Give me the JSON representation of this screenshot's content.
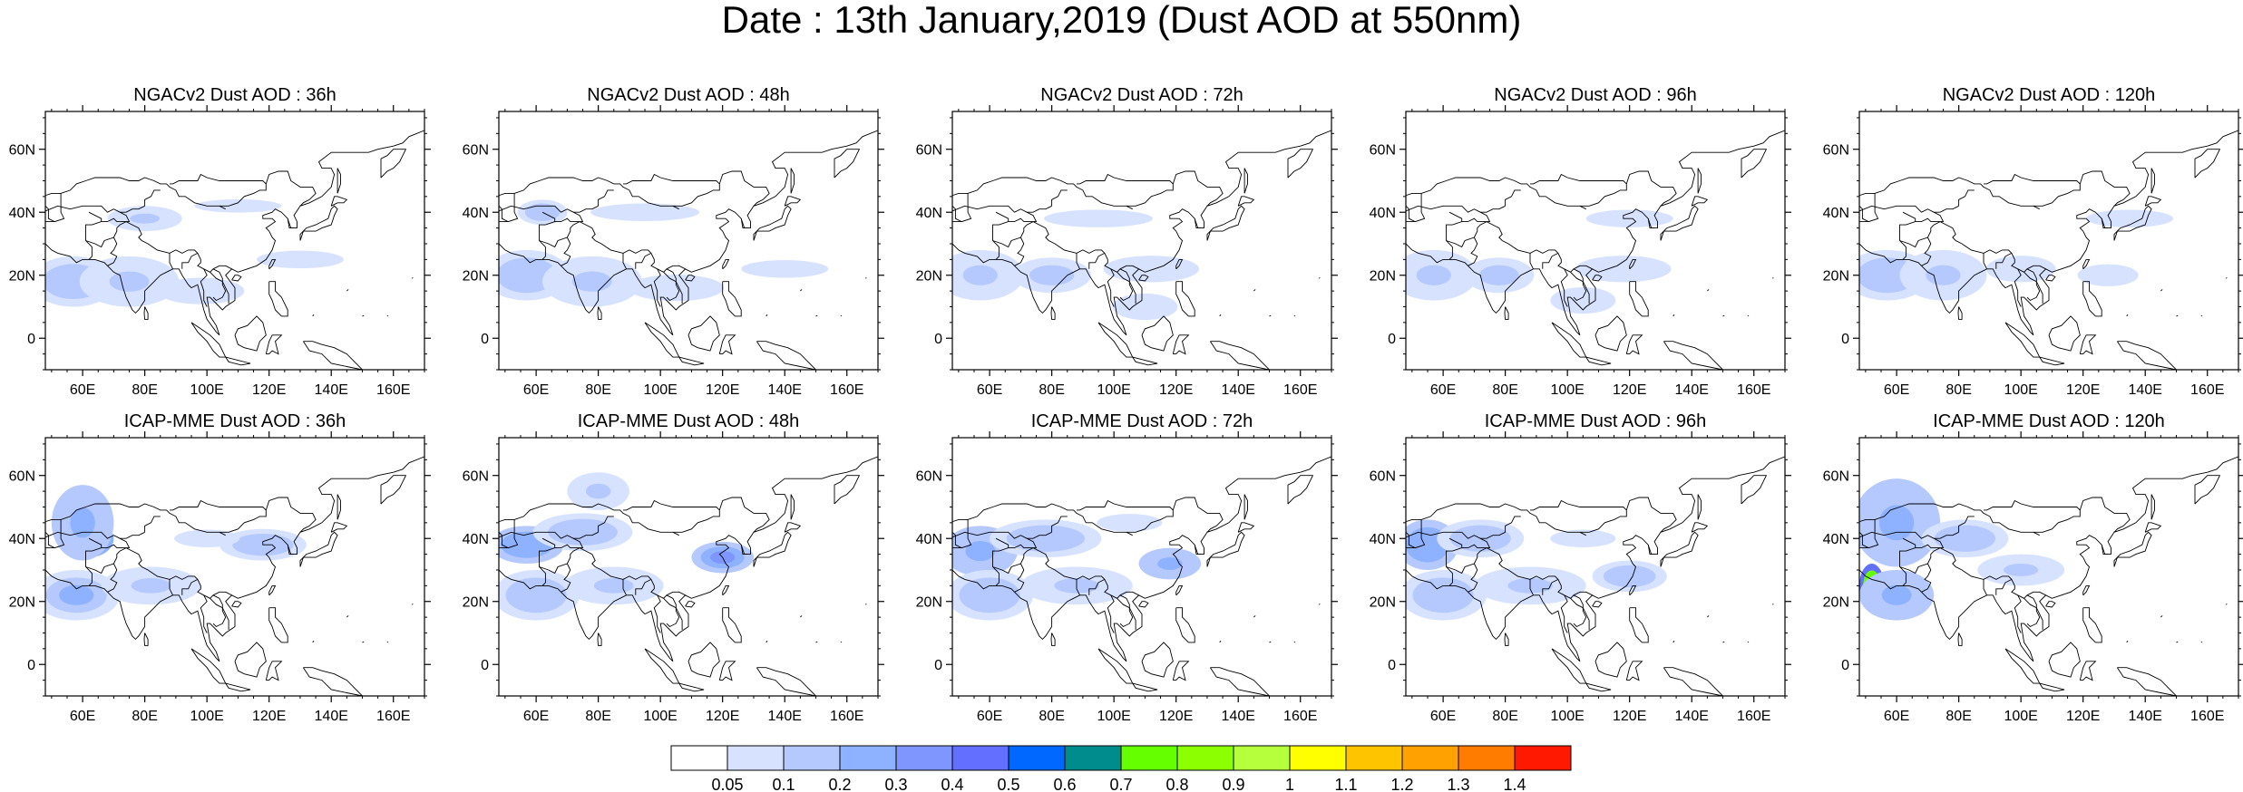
{
  "title": "Date : 13th January,2019 (Dust AOD at 550nm)",
  "panels": [
    {
      "title": "NGACv2 Dust AOD : 36h",
      "model": "NGACv2",
      "lead": "36h",
      "blobs": [
        [
          57,
          18,
          14,
          8,
          0.12
        ],
        [
          75,
          18,
          16,
          8,
          0.1
        ],
        [
          98,
          15,
          20,
          6,
          0.08
        ],
        [
          130,
          25,
          20,
          4,
          0.07
        ],
        [
          80,
          38,
          12,
          4,
          0.1
        ],
        [
          110,
          42,
          20,
          3,
          0.07
        ]
      ]
    },
    {
      "title": "NGACv2 Dust AOD : 48h",
      "model": "NGACv2",
      "lead": "48h",
      "blobs": [
        [
          57,
          20,
          14,
          8,
          0.12
        ],
        [
          78,
          18,
          16,
          8,
          0.1
        ],
        [
          105,
          16,
          22,
          6,
          0.08
        ],
        [
          140,
          22,
          20,
          4,
          0.07
        ],
        [
          95,
          40,
          25,
          4,
          0.07
        ],
        [
          62,
          40,
          8,
          4,
          0.12
        ]
      ]
    },
    {
      "title": "NGACv2 Dust AOD : 72h",
      "model": "NGACv2",
      "lead": "72h",
      "blobs": [
        [
          57,
          20,
          14,
          8,
          0.1
        ],
        [
          80,
          20,
          18,
          8,
          0.09
        ],
        [
          112,
          22,
          22,
          6,
          0.07
        ],
        [
          95,
          38,
          25,
          4,
          0.07
        ],
        [
          110,
          10,
          15,
          6,
          0.06
        ]
      ]
    },
    {
      "title": "NGACv2 Dust AOD : 96h",
      "model": "NGACv2",
      "lead": "96h",
      "blobs": [
        [
          57,
          20,
          14,
          8,
          0.1
        ],
        [
          78,
          20,
          16,
          8,
          0.09
        ],
        [
          118,
          22,
          22,
          6,
          0.07
        ],
        [
          120,
          38,
          20,
          4,
          0.06
        ],
        [
          105,
          12,
          15,
          6,
          0.06
        ]
      ]
    },
    {
      "title": "NGACv2 Dust AOD : 120h",
      "model": "NGACv2",
      "lead": "120h",
      "blobs": [
        [
          57,
          20,
          14,
          8,
          0.12
        ],
        [
          75,
          20,
          14,
          8,
          0.1
        ],
        [
          100,
          22,
          16,
          6,
          0.08
        ],
        [
          135,
          38,
          20,
          4,
          0.06
        ],
        [
          128,
          20,
          14,
          5,
          0.06
        ]
      ]
    },
    {
      "title": "ICAP-MME Dust AOD : 36h",
      "model": "ICAP-MME",
      "lead": "36h",
      "blobs": [
        [
          62,
          40,
          8,
          6,
          0.45
        ],
        [
          60,
          45,
          10,
          12,
          0.2
        ],
        [
          58,
          22,
          14,
          8,
          0.18
        ],
        [
          82,
          25,
          16,
          6,
          0.1
        ],
        [
          118,
          38,
          14,
          5,
          0.12
        ],
        [
          100,
          40,
          15,
          4,
          0.08
        ]
      ]
    },
    {
      "title": "ICAP-MME Dust AOD : 48h",
      "model": "ICAP-MME",
      "lead": "48h",
      "blobs": [
        [
          57,
          38,
          12,
          6,
          0.25
        ],
        [
          75,
          42,
          16,
          6,
          0.15
        ],
        [
          120,
          34,
          10,
          5,
          0.3
        ],
        [
          60,
          22,
          14,
          8,
          0.15
        ],
        [
          85,
          25,
          16,
          6,
          0.1
        ],
        [
          80,
          55,
          10,
          6,
          0.1
        ]
      ]
    },
    {
      "title": "ICAP-MME Dust AOD : 72h",
      "model": "ICAP-MME",
      "lead": "72h",
      "blobs": [
        [
          57,
          36,
          12,
          8,
          0.2
        ],
        [
          78,
          40,
          18,
          6,
          0.12
        ],
        [
          118,
          32,
          10,
          5,
          0.2
        ],
        [
          60,
          22,
          14,
          8,
          0.15
        ],
        [
          88,
          25,
          18,
          6,
          0.1
        ],
        [
          105,
          45,
          15,
          4,
          0.08
        ]
      ]
    },
    {
      "title": "ICAP-MME Dust AOD : 96h",
      "model": "ICAP-MME",
      "lead": "96h",
      "blobs": [
        [
          55,
          38,
          10,
          8,
          0.25
        ],
        [
          72,
          40,
          14,
          6,
          0.15
        ],
        [
          120,
          28,
          12,
          5,
          0.12
        ],
        [
          60,
          22,
          14,
          8,
          0.15
        ],
        [
          88,
          25,
          18,
          6,
          0.1
        ],
        [
          105,
          40,
          15,
          4,
          0.07
        ]
      ]
    },
    {
      "title": "ICAP-MME Dust AOD : 120h",
      "model": "ICAP-MME",
      "lead": "120h",
      "blobs": [
        [
          52,
          25,
          4,
          7,
          0.85
        ],
        [
          62,
          42,
          10,
          8,
          0.45
        ],
        [
          60,
          45,
          14,
          14,
          0.2
        ],
        [
          82,
          40,
          14,
          6,
          0.15
        ],
        [
          60,
          22,
          12,
          8,
          0.2
        ],
        [
          100,
          30,
          14,
          5,
          0.1
        ]
      ]
    }
  ],
  "map": {
    "lat_ticks": [
      "60N",
      "40N",
      "20N",
      "0"
    ],
    "lat_values": [
      60,
      40,
      20,
      0
    ],
    "lon_ticks": [
      "60E",
      "80E",
      "100E",
      "120E",
      "140E",
      "160E"
    ],
    "lon_values": [
      60,
      80,
      100,
      120,
      140,
      160
    ],
    "lon_range": [
      48,
      170
    ],
    "lat_range": [
      -10,
      72
    ]
  },
  "colorbar": {
    "colors": [
      "#ffffff",
      "#d6e2ff",
      "#b5c9ff",
      "#8eb2ff",
      "#7f96ff",
      "#6370ff",
      "#0068ff",
      "#008c8c",
      "#66ff00",
      "#8cff00",
      "#b6ff3d",
      "#ffff00",
      "#ffc400",
      "#ffa100",
      "#ff7c00",
      "#ff1900"
    ],
    "labels": [
      "0.05",
      "0.1",
      "0.2",
      "0.3",
      "0.4",
      "0.5",
      "0.6",
      "0.7",
      "0.8",
      "0.9",
      "1",
      "1.1",
      "1.2",
      "1.3",
      "1.4"
    ],
    "thresholds": [
      0.05,
      0.1,
      0.2,
      0.3,
      0.4,
      0.5,
      0.6,
      0.7,
      0.8,
      0.9,
      1,
      1.1,
      1.2,
      1.3,
      1.4
    ]
  }
}
